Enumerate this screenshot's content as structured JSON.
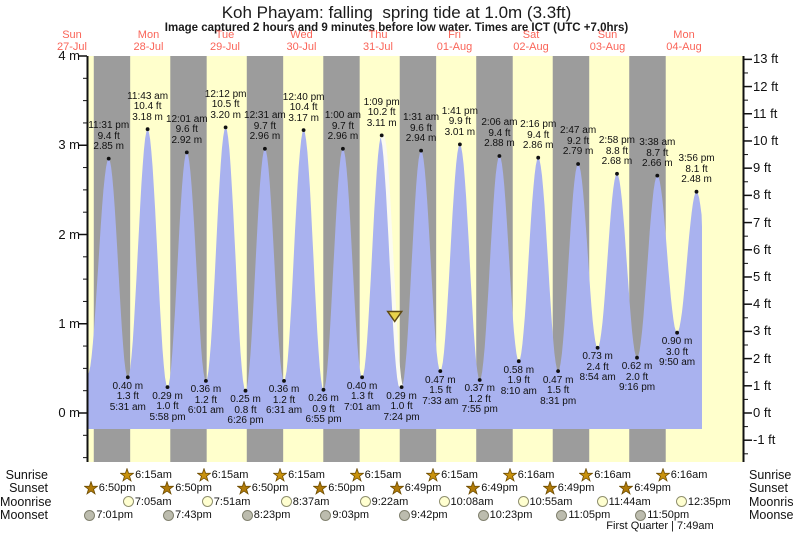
{
  "title": "Koh Phayam: falling  spring tide at 1.0m (3.3ft)",
  "subtitle": "Image captured 2 hours and 9 minutes before low water. Times are ICT (UTC +7.0hrs)",
  "colors": {
    "day_band": "#ffffcc",
    "night_band": "#9c9c9c",
    "water": "#a9b2ef",
    "day_label_red": "#fa6458",
    "axis": "#111111",
    "marker_fill": "#e8d24b",
    "marker_stroke": "#5f4a14",
    "highlight": "#fbfbf0",
    "sunrise_star": "#c9920e",
    "sunset_star": "#b07a08",
    "moonrise_fill": "#ffffd0",
    "moonrise_stroke": "#8f8f6e",
    "moonset_fill": "#bcbcae",
    "moonset_stroke": "#80806e"
  },
  "chart_data": {
    "type": "area",
    "title": "Koh Phayam: falling  spring tide at 1.0m (3.3ft)",
    "subtitle": "Image captured 2 hours and 9 minutes before low water. Times are ICT (UTC +7.0hrs)",
    "ylabel_left": "m",
    "ylabel_right": "ft",
    "ylim_m": [
      -0.55,
      4.0
    ],
    "grid": false,
    "days": [
      {
        "weekday": "Sun",
        "date": "27-Jul"
      },
      {
        "weekday": "Mon",
        "date": "28-Jul"
      },
      {
        "weekday": "Tue",
        "date": "29-Jul"
      },
      {
        "weekday": "Wed",
        "date": "30-Jul"
      },
      {
        "weekday": "Thu",
        "date": "31-Jul"
      },
      {
        "weekday": "Fri",
        "date": "01-Aug"
      },
      {
        "weekday": "Sat",
        "date": "02-Aug"
      },
      {
        "weekday": "Sun",
        "date": "03-Aug"
      },
      {
        "weekday": "Mon",
        "date": "04-Aug"
      }
    ],
    "axes": {
      "left": {
        "unit": "m",
        "ticks": [
          0,
          1,
          2,
          3,
          4
        ]
      },
      "right": {
        "unit": "ft",
        "ticks": [
          -1,
          0,
          1,
          2,
          3,
          4,
          5,
          6,
          7,
          8,
          9,
          10,
          11,
          12,
          13
        ]
      }
    },
    "tide_events": [
      {
        "kind": "high",
        "time": "11:31 pm",
        "height_ft": "9.4",
        "height_m": "2.85",
        "t_hours": 23.517
      },
      {
        "kind": "low",
        "time": "5:31 am",
        "height_ft": "1.3",
        "height_m": "0.40",
        "t_hours": 29.517
      },
      {
        "kind": "high",
        "time": "11:43 am",
        "height_ft": "10.4",
        "height_m": "3.18",
        "t_hours": 35.717
      },
      {
        "kind": "low",
        "time": "5:58 pm",
        "height_ft": "1.0",
        "height_m": "0.29",
        "t_hours": 41.967
      },
      {
        "kind": "high",
        "time": "12:01 am",
        "height_ft": "9.6",
        "height_m": "2.92",
        "t_hours": 48.017
      },
      {
        "kind": "low",
        "time": "6:01 am",
        "height_ft": "1.2",
        "height_m": "0.36",
        "t_hours": 54.017
      },
      {
        "kind": "high",
        "time": "12:12 pm",
        "height_ft": "10.5",
        "height_m": "3.20",
        "t_hours": 60.2
      },
      {
        "kind": "low",
        "time": "6:26 pm",
        "height_ft": "0.8",
        "height_m": "0.25",
        "t_hours": 66.433
      },
      {
        "kind": "high",
        "time": "12:31 am",
        "height_ft": "9.7",
        "height_m": "2.96",
        "t_hours": 72.517
      },
      {
        "kind": "low",
        "time": "6:31 am",
        "height_ft": "1.2",
        "height_m": "0.36",
        "t_hours": 78.517
      },
      {
        "kind": "high",
        "time": "12:40 pm",
        "height_ft": "10.4",
        "height_m": "3.17",
        "t_hours": 84.667
      },
      {
        "kind": "low",
        "time": "6:55 pm",
        "height_ft": "0.9",
        "height_m": "0.26",
        "t_hours": 90.917
      },
      {
        "kind": "high",
        "time": "1:00 am",
        "height_ft": "9.7",
        "height_m": "2.96",
        "t_hours": 97.0
      },
      {
        "kind": "low",
        "time": "7:01 am",
        "height_ft": "1.3",
        "height_m": "0.40",
        "t_hours": 103.017
      },
      {
        "kind": "high",
        "time": "1:09 pm",
        "height_ft": "10.2",
        "height_m": "3.11",
        "t_hours": 109.15
      },
      {
        "kind": "low",
        "time": "7:24 pm",
        "height_ft": "1.0",
        "height_m": "0.29",
        "t_hours": 115.4
      },
      {
        "kind": "high",
        "time": "1:31 am",
        "height_ft": "9.6",
        "height_m": "2.94",
        "t_hours": 121.517
      },
      {
        "kind": "low",
        "time": "7:33 am",
        "height_ft": "1.5",
        "height_m": "0.47",
        "t_hours": 127.55
      },
      {
        "kind": "high",
        "time": "1:41 pm",
        "height_ft": "9.9",
        "height_m": "3.01",
        "t_hours": 133.683
      },
      {
        "kind": "low",
        "time": "7:55 pm",
        "height_ft": "1.2",
        "height_m": "0.37",
        "t_hours": 139.917
      },
      {
        "kind": "high",
        "time": "2:06 am",
        "height_ft": "9.4",
        "height_m": "2.88",
        "t_hours": 146.1
      },
      {
        "kind": "low",
        "time": "8:10 am",
        "height_ft": "1.9",
        "height_m": "0.58",
        "t_hours": 152.167
      },
      {
        "kind": "high",
        "time": "2:16 pm",
        "height_ft": "9.4",
        "height_m": "2.86",
        "t_hours": 158.267
      },
      {
        "kind": "low",
        "time": "8:31 pm",
        "height_ft": "1.5",
        "height_m": "0.47",
        "t_hours": 164.517
      },
      {
        "kind": "high",
        "time": "2:47 am",
        "height_ft": "9.2",
        "height_m": "2.79",
        "t_hours": 170.783
      },
      {
        "kind": "low",
        "time": "8:54 am",
        "height_ft": "2.4",
        "height_m": "0.73",
        "t_hours": 176.9
      },
      {
        "kind": "high",
        "time": "2:58 pm",
        "height_ft": "8.8",
        "height_m": "2.68",
        "t_hours": 182.967
      },
      {
        "kind": "low",
        "time": "9:16 pm",
        "height_ft": "2.0",
        "height_m": "0.62",
        "t_hours": 189.267
      },
      {
        "kind": "high",
        "time": "3:38 am",
        "height_ft": "8.7",
        "height_m": "2.66",
        "t_hours": 195.633
      },
      {
        "kind": "low",
        "time": "9:50 am",
        "height_ft": "3.0",
        "height_m": "0.90",
        "t_hours": 201.833
      },
      {
        "kind": "high",
        "time": "3:56 pm",
        "height_ft": "8.1",
        "height_m": "2.48",
        "t_hours": 207.933
      }
    ],
    "curve_edges": {
      "start": {
        "t_hours": 16.9,
        "height_m": 0.43
      },
      "end": {
        "t_hours": 214.3,
        "height_m": 0.7
      }
    },
    "current_marker": {
      "t_hours": 113.25
    },
    "falling_highlight": {
      "from_t": 109.15,
      "to_t": 115.4
    }
  },
  "almanac": {
    "rows": [
      {
        "label": "Sunrise",
        "icon": "sunrise-star",
        "entries": [
          {
            "time": "6:15am",
            "t_hours": 30.25
          },
          {
            "time": "6:15am",
            "t_hours": 54.25
          },
          {
            "time": "6:15am",
            "t_hours": 78.25
          },
          {
            "time": "6:15am",
            "t_hours": 102.25
          },
          {
            "time": "6:15am",
            "t_hours": 126.25
          },
          {
            "time": "6:16am",
            "t_hours": 150.267
          },
          {
            "time": "6:16am",
            "t_hours": 174.267
          },
          {
            "time": "6:16am",
            "t_hours": 198.267
          }
        ]
      },
      {
        "label": "Sunset",
        "icon": "sunset-star",
        "entries": [
          {
            "time": "6:50pm",
            "t_hours": 18.833
          },
          {
            "time": "6:50pm",
            "t_hours": 42.833
          },
          {
            "time": "6:50pm",
            "t_hours": 66.833
          },
          {
            "time": "6:50pm",
            "t_hours": 90.833
          },
          {
            "time": "6:49pm",
            "t_hours": 114.817
          },
          {
            "time": "6:49pm",
            "t_hours": 138.817
          },
          {
            "time": "6:49pm",
            "t_hours": 162.817
          },
          {
            "time": "6:49pm",
            "t_hours": 186.817
          }
        ]
      },
      {
        "label": "Moonrise",
        "icon": "moonrise-circle",
        "entries": [
          {
            "time": "7:05am",
            "t_hours": 31.083
          },
          {
            "time": "7:51am",
            "t_hours": 55.85
          },
          {
            "time": "8:37am",
            "t_hours": 80.617
          },
          {
            "time": "9:22am",
            "t_hours": 105.367
          },
          {
            "time": "10:08am",
            "t_hours": 130.133
          },
          {
            "time": "10:55am",
            "t_hours": 154.917
          },
          {
            "time": "11:44am",
            "t_hours": 179.733
          },
          {
            "time": "12:35pm",
            "t_hours": 204.583
          }
        ]
      },
      {
        "label": "Moonset",
        "icon": "moonset-circle",
        "entries": [
          {
            "time": "7:01pm",
            "t_hours": 19.017
          },
          {
            "time": "7:43pm",
            "t_hours": 43.717
          },
          {
            "time": "8:23pm",
            "t_hours": 68.383
          },
          {
            "time": "9:03pm",
            "t_hours": 93.05
          },
          {
            "time": "9:42pm",
            "t_hours": 117.7
          },
          {
            "time": "10:23pm",
            "t_hours": 142.383
          },
          {
            "time": "11:05pm",
            "t_hours": 167.083
          },
          {
            "time": "11:50pm",
            "t_hours": 191.833
          }
        ]
      }
    ]
  },
  "footer": {
    "moon_phase": "First Quarter | 7:49am"
  }
}
